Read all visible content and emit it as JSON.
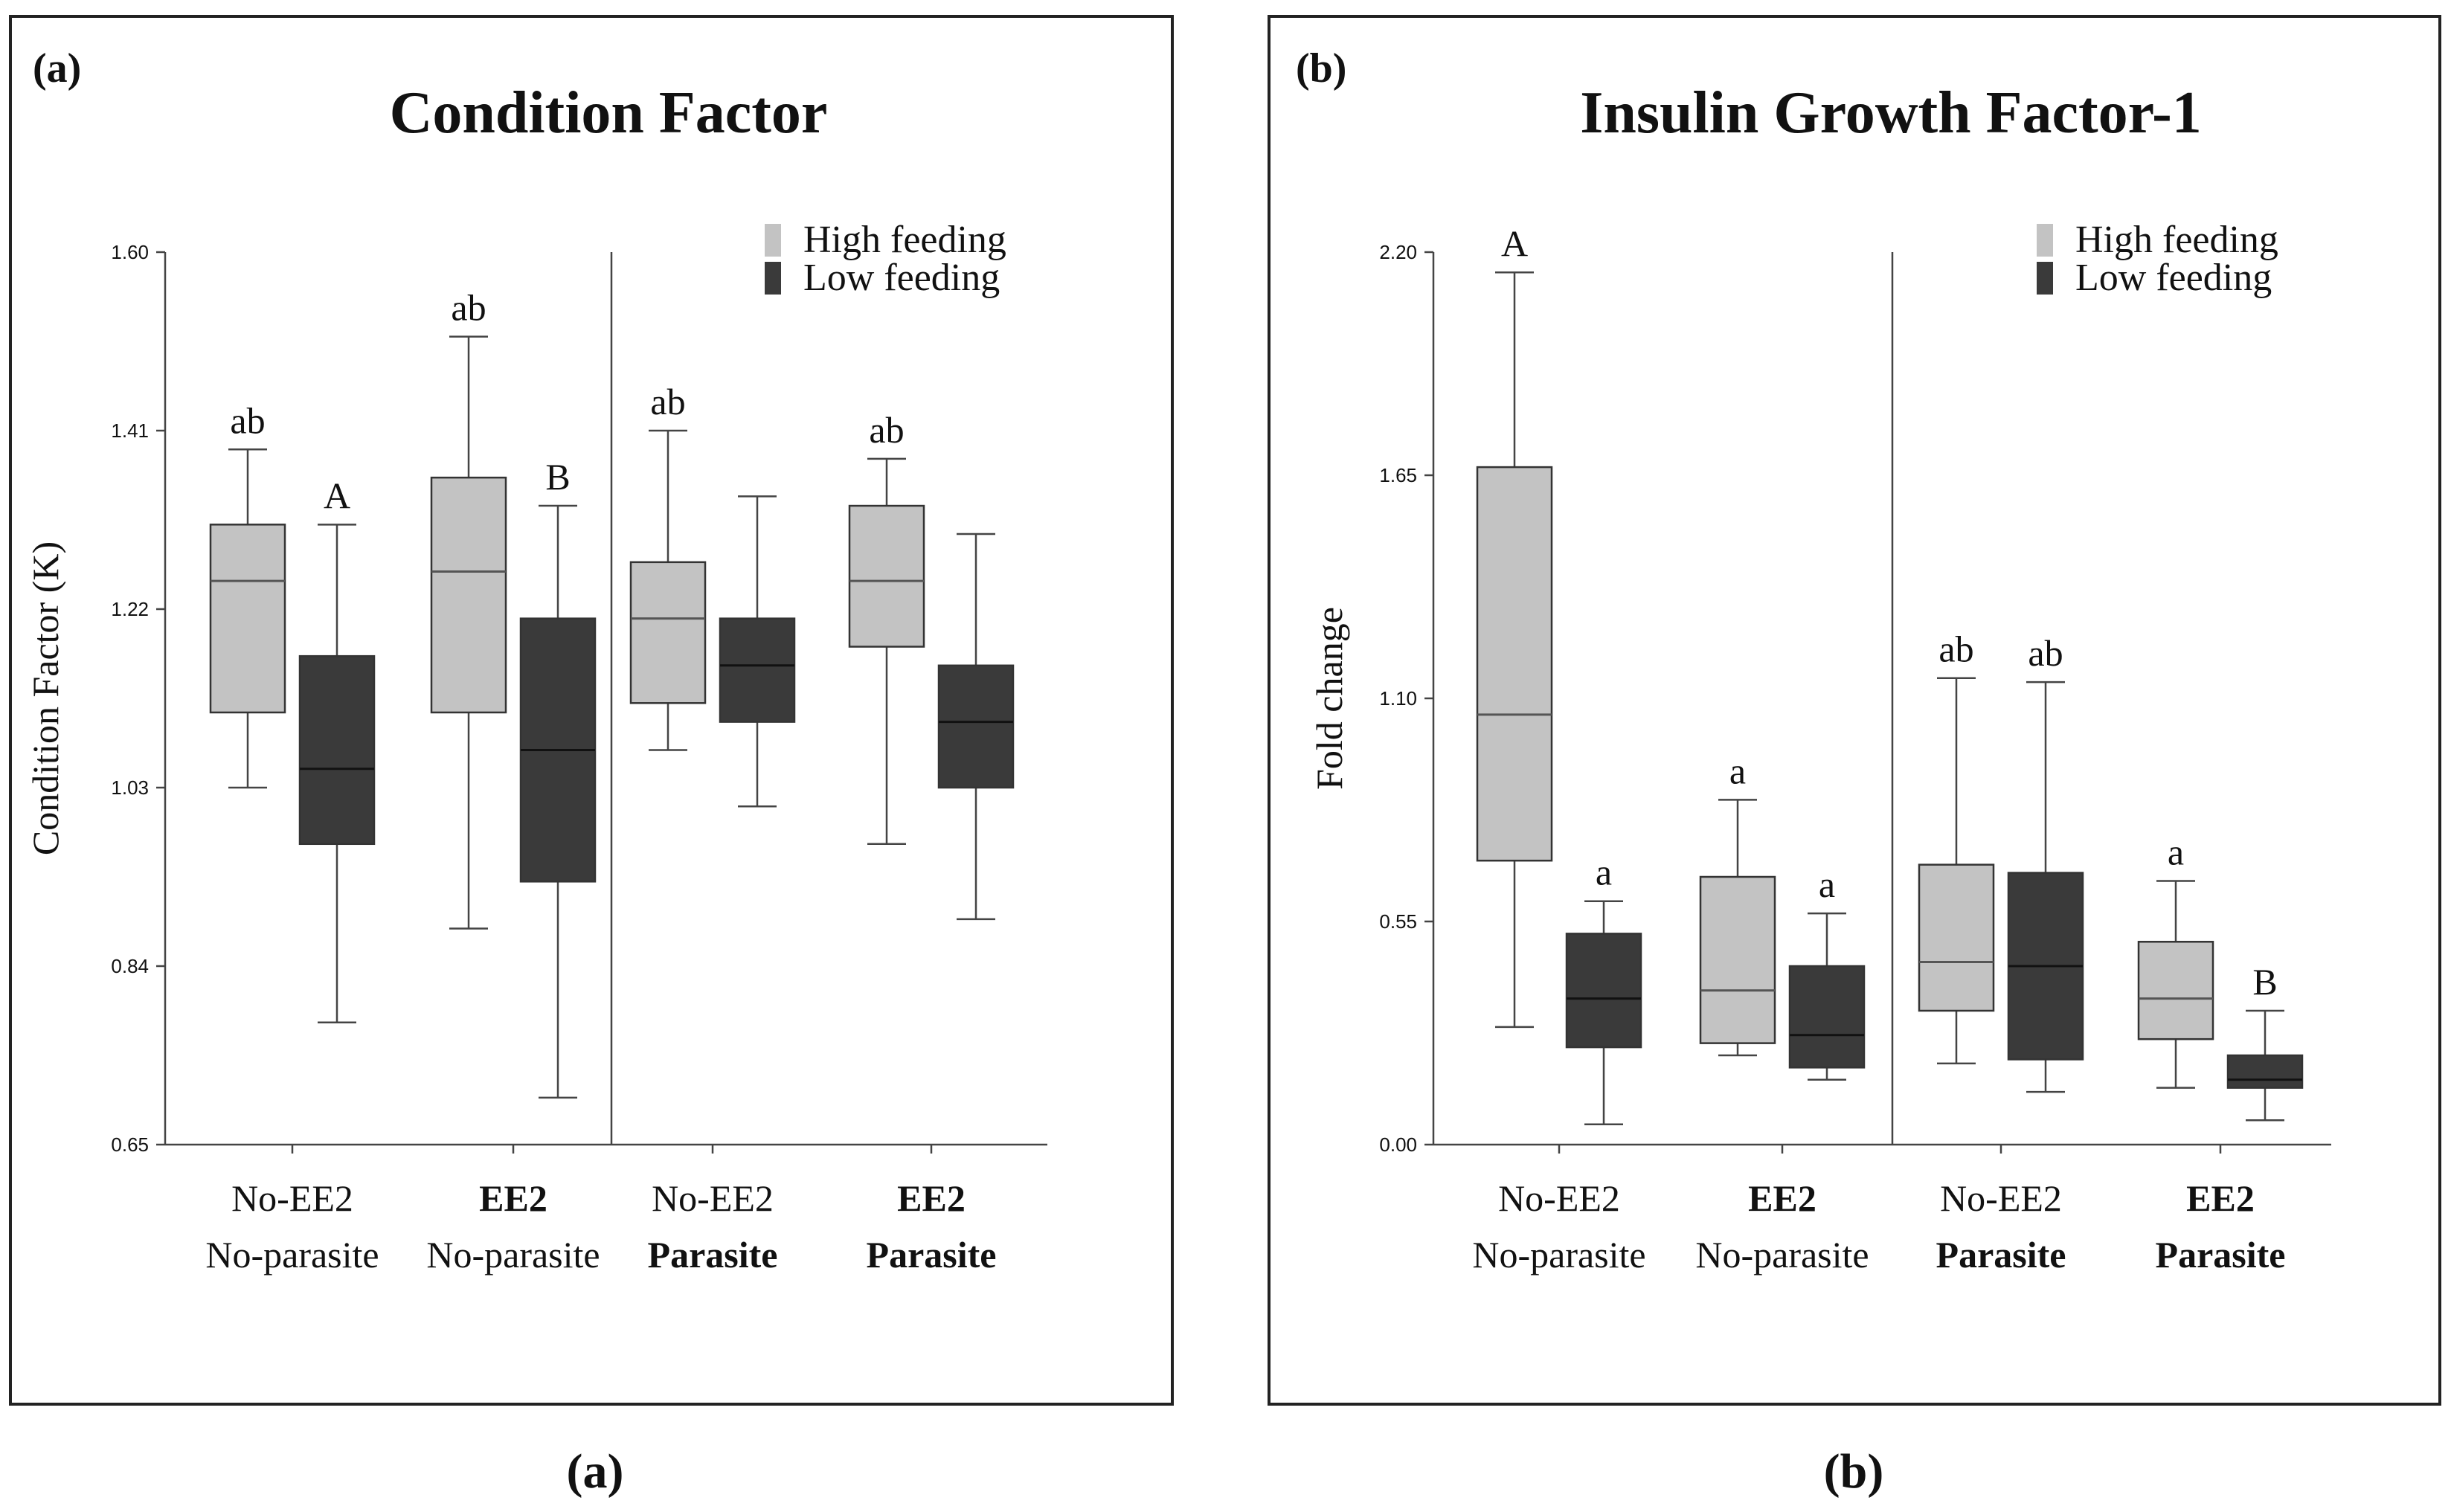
{
  "chart_data": [
    {
      "type": "box",
      "panel_label": "(a)",
      "caption": "(a)",
      "title": "Condition Factor",
      "ylabel": "Condition Factor (K)",
      "ylim": [
        0.65,
        1.6
      ],
      "yticks": [
        "0.65",
        "0.84",
        "1.03",
        "1.22",
        "1.41",
        "1.60"
      ],
      "groups": [
        {
          "line1": "No-EE2",
          "line2": "No-parasite",
          "line1_bold": false,
          "line2_bold": false
        },
        {
          "line1": "EE2",
          "line2": "No-parasite",
          "line1_bold": true,
          "line2_bold": false
        },
        {
          "line1": "No-EE2",
          "line2": "Parasite",
          "line1_bold": false,
          "line2_bold": true
        },
        {
          "line1": "EE2",
          "line2": "Parasite",
          "line1_bold": true,
          "line2_bold": true
        }
      ],
      "legend": [
        {
          "label": "High feeding",
          "color": "#c3c3c3"
        },
        {
          "label": "Low feeding",
          "color": "#3a3a3a"
        }
      ],
      "series": [
        {
          "name": "High feeding",
          "boxes": [
            {
              "group": 0,
              "min": 1.03,
              "q1": 1.11,
              "median": 1.25,
              "q3": 1.31,
              "max": 1.39,
              "label": "ab"
            },
            {
              "group": 1,
              "min": 0.88,
              "q1": 1.11,
              "median": 1.26,
              "q3": 1.36,
              "max": 1.51,
              "label": "ab"
            },
            {
              "group": 2,
              "min": 1.07,
              "q1": 1.12,
              "median": 1.21,
              "q3": 1.27,
              "max": 1.41,
              "label": "ab"
            },
            {
              "group": 3,
              "min": 0.97,
              "q1": 1.18,
              "median": 1.25,
              "q3": 1.33,
              "max": 1.38,
              "label": "ab"
            }
          ]
        },
        {
          "name": "Low feeding",
          "boxes": [
            {
              "group": 0,
              "min": 0.78,
              "q1": 0.97,
              "median": 1.05,
              "q3": 1.17,
              "max": 1.31,
              "label": "A"
            },
            {
              "group": 1,
              "min": 0.7,
              "q1": 0.93,
              "median": 1.07,
              "q3": 1.21,
              "max": 1.33,
              "label": "B"
            },
            {
              "group": 2,
              "min": 1.01,
              "q1": 1.1,
              "median": 1.16,
              "q3": 1.21,
              "max": 1.34,
              "label": ""
            },
            {
              "group": 3,
              "min": 0.89,
              "q1": 1.03,
              "median": 1.1,
              "q3": 1.16,
              "max": 1.3,
              "label": ""
            }
          ]
        }
      ]
    },
    {
      "type": "box",
      "panel_label": "(b)",
      "caption": "(b)",
      "title": "Insulin Growth Factor-1",
      "ylabel": "Fold change",
      "ylim": [
        0.0,
        2.2
      ],
      "yticks": [
        "0.00",
        "0.55",
        "1.10",
        "1.65",
        "2.20"
      ],
      "groups": [
        {
          "line1": "No-EE2",
          "line2": "No-parasite",
          "line1_bold": false,
          "line2_bold": false
        },
        {
          "line1": "EE2",
          "line2": "No-parasite",
          "line1_bold": true,
          "line2_bold": false
        },
        {
          "line1": "No-EE2",
          "line2": "Parasite",
          "line1_bold": false,
          "line2_bold": true
        },
        {
          "line1": "EE2",
          "line2": "Parasite",
          "line1_bold": true,
          "line2_bold": true
        }
      ],
      "legend": [
        {
          "label": "High feeding",
          "color": "#c3c3c3"
        },
        {
          "label": "Low feeding",
          "color": "#3a3a3a"
        }
      ],
      "series": [
        {
          "name": "High feeding",
          "boxes": [
            {
              "group": 0,
              "min": 0.29,
              "q1": 0.7,
              "median": 1.06,
              "q3": 1.67,
              "max": 2.15,
              "label": "A"
            },
            {
              "group": 1,
              "min": 0.22,
              "q1": 0.25,
              "median": 0.38,
              "q3": 0.66,
              "max": 0.85,
              "label": "a"
            },
            {
              "group": 2,
              "min": 0.2,
              "q1": 0.33,
              "median": 0.45,
              "q3": 0.69,
              "max": 1.15,
              "label": "ab"
            },
            {
              "group": 3,
              "min": 0.14,
              "q1": 0.26,
              "median": 0.36,
              "q3": 0.5,
              "max": 0.65,
              "label": "a"
            }
          ]
        },
        {
          "name": "Low feeding",
          "boxes": [
            {
              "group": 0,
              "min": 0.05,
              "q1": 0.24,
              "median": 0.36,
              "q3": 0.52,
              "max": 0.6,
              "label": "a"
            },
            {
              "group": 1,
              "min": 0.16,
              "q1": 0.19,
              "median": 0.27,
              "q3": 0.44,
              "max": 0.57,
              "label": "a"
            },
            {
              "group": 2,
              "min": 0.13,
              "q1": 0.21,
              "median": 0.44,
              "q3": 0.67,
              "max": 1.14,
              "label": "ab"
            },
            {
              "group": 3,
              "min": 0.06,
              "q1": 0.14,
              "median": 0.16,
              "q3": 0.22,
              "max": 0.33,
              "label": "B"
            }
          ]
        }
      ]
    }
  ]
}
